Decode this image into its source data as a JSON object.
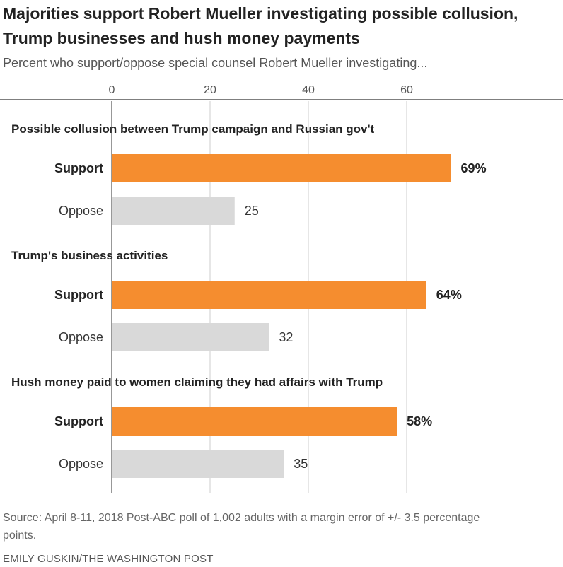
{
  "chart_data": {
    "type": "bar",
    "orientation": "horizontal",
    "title": "Majorities support Robert Mueller investigating possible collusion, Trump businesses and hush money payments",
    "subtitle": "Percent who support/oppose special counsel Robert Mueller investigating...",
    "xlim": [
      0,
      70
    ],
    "xticks": [
      0,
      20,
      40,
      60
    ],
    "xtick_labels": [
      "0",
      "20",
      "40",
      "60"
    ],
    "gridlines": true,
    "groups": [
      {
        "label": "Possible collusion between Trump campaign and Russian gov't",
        "bars": [
          {
            "category": "Support",
            "value": 69,
            "label": "69%"
          },
          {
            "category": "Oppose",
            "value": 25,
            "label": "25"
          }
        ]
      },
      {
        "label": "Trump's business activities",
        "bars": [
          {
            "category": "Support",
            "value": 64,
            "label": "64%"
          },
          {
            "category": "Oppose",
            "value": 32,
            "label": "32"
          }
        ]
      },
      {
        "label": "Hush money paid to women claiming they had affairs with Trump",
        "bars": [
          {
            "category": "Support",
            "value": 58,
            "label": "58%"
          },
          {
            "category": "Oppose",
            "value": 35,
            "label": "35"
          }
        ]
      }
    ],
    "colors": {
      "Support": "#f58d2f",
      "Oppose": "#d9d9d9",
      "grid": "#cccccc",
      "axis": "#555555"
    }
  },
  "footer": {
    "source": "Source: April 8-11, 2018 Post-ABC poll of 1,002 adults with a margin error of +/- 3.5 percentage points.",
    "credit": "EMILY GUSKIN/THE WASHINGTON POST"
  }
}
